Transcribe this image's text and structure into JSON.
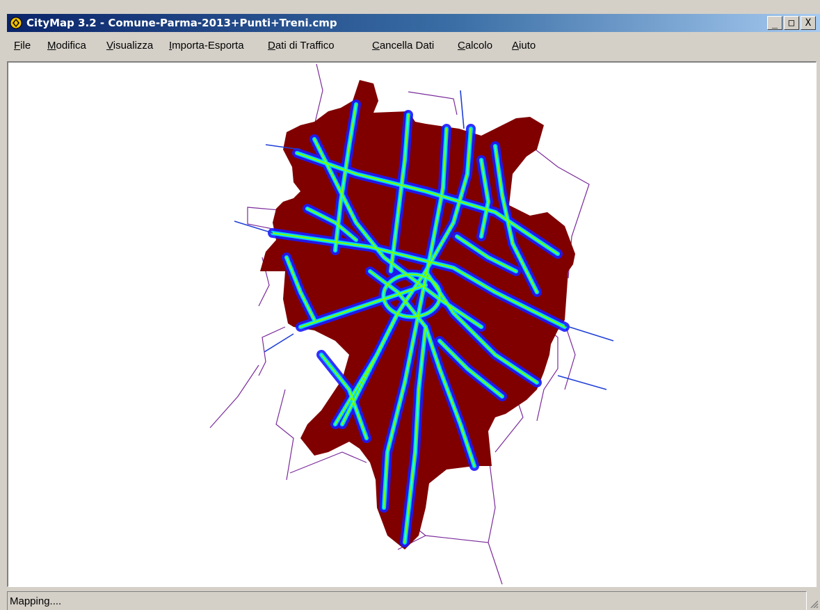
{
  "window": {
    "title": "CityMap 3.2 - Comune-Parma-2013+Punti+Treni.cmp",
    "controls": {
      "minimize": "_",
      "maximize": "□",
      "close": "X"
    }
  },
  "menu": {
    "items": [
      "File",
      "Modifica",
      "Visualizza",
      "Importa-Esporta",
      "Dati di Traffico",
      "Cancella Dati",
      "Calcolo",
      "Aiuto"
    ]
  },
  "map": {
    "colors": {
      "area": "#800000",
      "road_glow": "#1a1aff",
      "road_mid": "#00e5ff",
      "road_core": "#7cff00",
      "rail": "#1f3fd8",
      "boundary": "#7a2a9a"
    }
  },
  "status": {
    "text": "Mapping...."
  },
  "icons": {
    "app": "citymap-icon",
    "grip": "resize-grip-icon"
  }
}
